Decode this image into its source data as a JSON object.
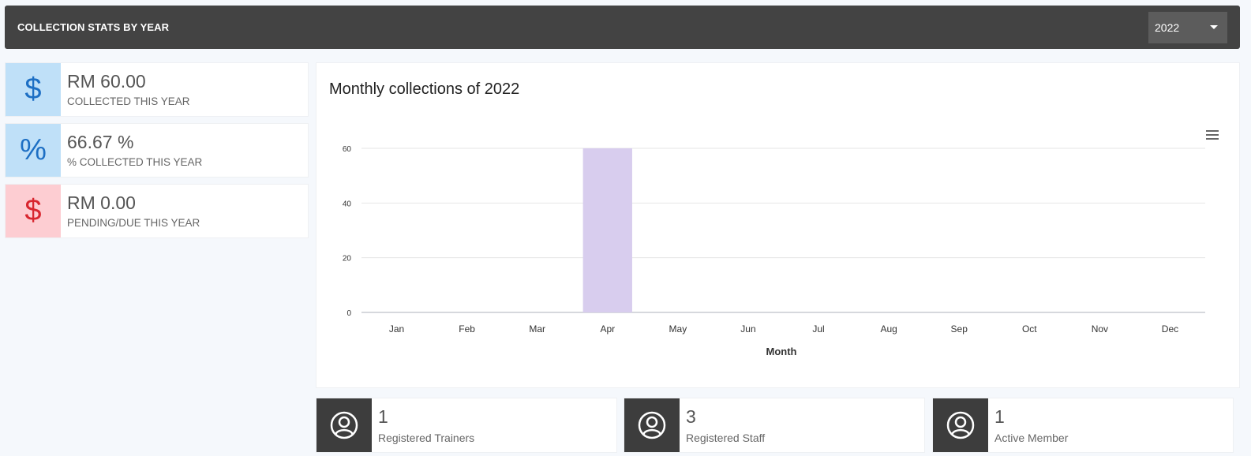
{
  "header": {
    "title": "COLLECTION STATS BY YEAR",
    "year_selected": "2022"
  },
  "stats": [
    {
      "value": "RM 60.00",
      "label": "COLLECTED THIS YEAR",
      "icon": "dollar-icon",
      "symbol": "$"
    },
    {
      "value": "66.67 %",
      "label": "% COLLECTED THIS YEAR",
      "icon": "percent-icon",
      "symbol": "%"
    },
    {
      "value": "RM 0.00",
      "label": "PENDING/DUE THIS YEAR",
      "icon": "dollar-icon",
      "symbol": "$"
    }
  ],
  "chart": {
    "menu_icon": "hamburger-icon"
  },
  "chart_data": {
    "type": "bar",
    "title": "Monthly collections of 2022",
    "xlabel": "Month",
    "ylabel": "",
    "categories": [
      "Jan",
      "Feb",
      "Mar",
      "Apr",
      "May",
      "Jun",
      "Jul",
      "Aug",
      "Sep",
      "Oct",
      "Nov",
      "Dec"
    ],
    "values": [
      0,
      0,
      0,
      60,
      0,
      0,
      0,
      0,
      0,
      0,
      0,
      0
    ],
    "ylim": [
      0,
      60
    ],
    "yticks": [
      0,
      20,
      40,
      60
    ],
    "grid": true,
    "bar_color": "#d8cdee"
  },
  "info_cards": [
    {
      "value": "1",
      "label": "Registered Trainers",
      "icon": "user-circle-icon"
    },
    {
      "value": "3",
      "label": "Registered Staff",
      "icon": "user-circle-icon"
    },
    {
      "value": "1",
      "label": "Active Member",
      "icon": "user-circle-icon"
    }
  ]
}
